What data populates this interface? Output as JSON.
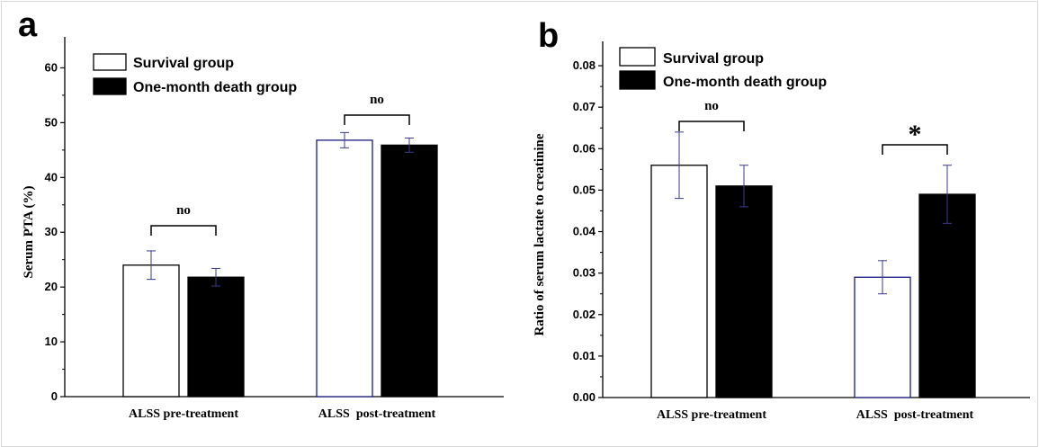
{
  "chart_data": [
    {
      "panel_label": "a",
      "type": "bar",
      "categories": [
        "ALSS pre-treatment",
        "ALSS  post-treatment"
      ],
      "series": [
        {
          "name": "Survival group",
          "values": [
            24.0,
            46.8
          ],
          "errors": [
            2.6,
            1.4
          ],
          "fill": "#ffffff"
        },
        {
          "name": "One-month death group",
          "values": [
            21.8,
            45.9
          ],
          "errors": [
            1.6,
            1.3
          ],
          "fill": "#000000"
        }
      ],
      "significance": [
        "no",
        "no"
      ],
      "xlabel": "",
      "ylabel": "Serum PTA (%)",
      "ylim": [
        0,
        65
      ],
      "yticks": [
        0,
        10,
        20,
        30,
        40,
        50,
        60
      ],
      "ytick_labels": [
        "0",
        "10",
        "20",
        "30",
        "40",
        "50",
        "60"
      ],
      "legend": "top-left"
    },
    {
      "panel_label": "b",
      "type": "bar",
      "categories": [
        "ALSS pre-treatment",
        "ALSS  post-treatment"
      ],
      "series": [
        {
          "name": "Survival group",
          "values": [
            0.056,
            0.029
          ],
          "errors": [
            0.008,
            0.004
          ],
          "fill": "#ffffff"
        },
        {
          "name": "One-month death group",
          "values": [
            0.051,
            0.049
          ],
          "errors": [
            0.005,
            0.007
          ],
          "fill": "#000000"
        }
      ],
      "significance": [
        "no",
        "*"
      ],
      "xlabel": "",
      "ylabel": "Ratio of serum lactate to creatinine",
      "ylim": [
        0,
        0.085
      ],
      "yticks": [
        0,
        0.01,
        0.02,
        0.03,
        0.04,
        0.05,
        0.06,
        0.07,
        0.08
      ],
      "ytick_labels": [
        "0.00",
        "0.01",
        "0.02",
        "0.03",
        "0.04",
        "0.05",
        "0.06",
        "0.07",
        "0.08"
      ],
      "legend": "top-left"
    }
  ],
  "colors": {
    "axis": "#000000",
    "error_bar": "#3a3a8a",
    "survival_outline": "#1a1a80"
  }
}
